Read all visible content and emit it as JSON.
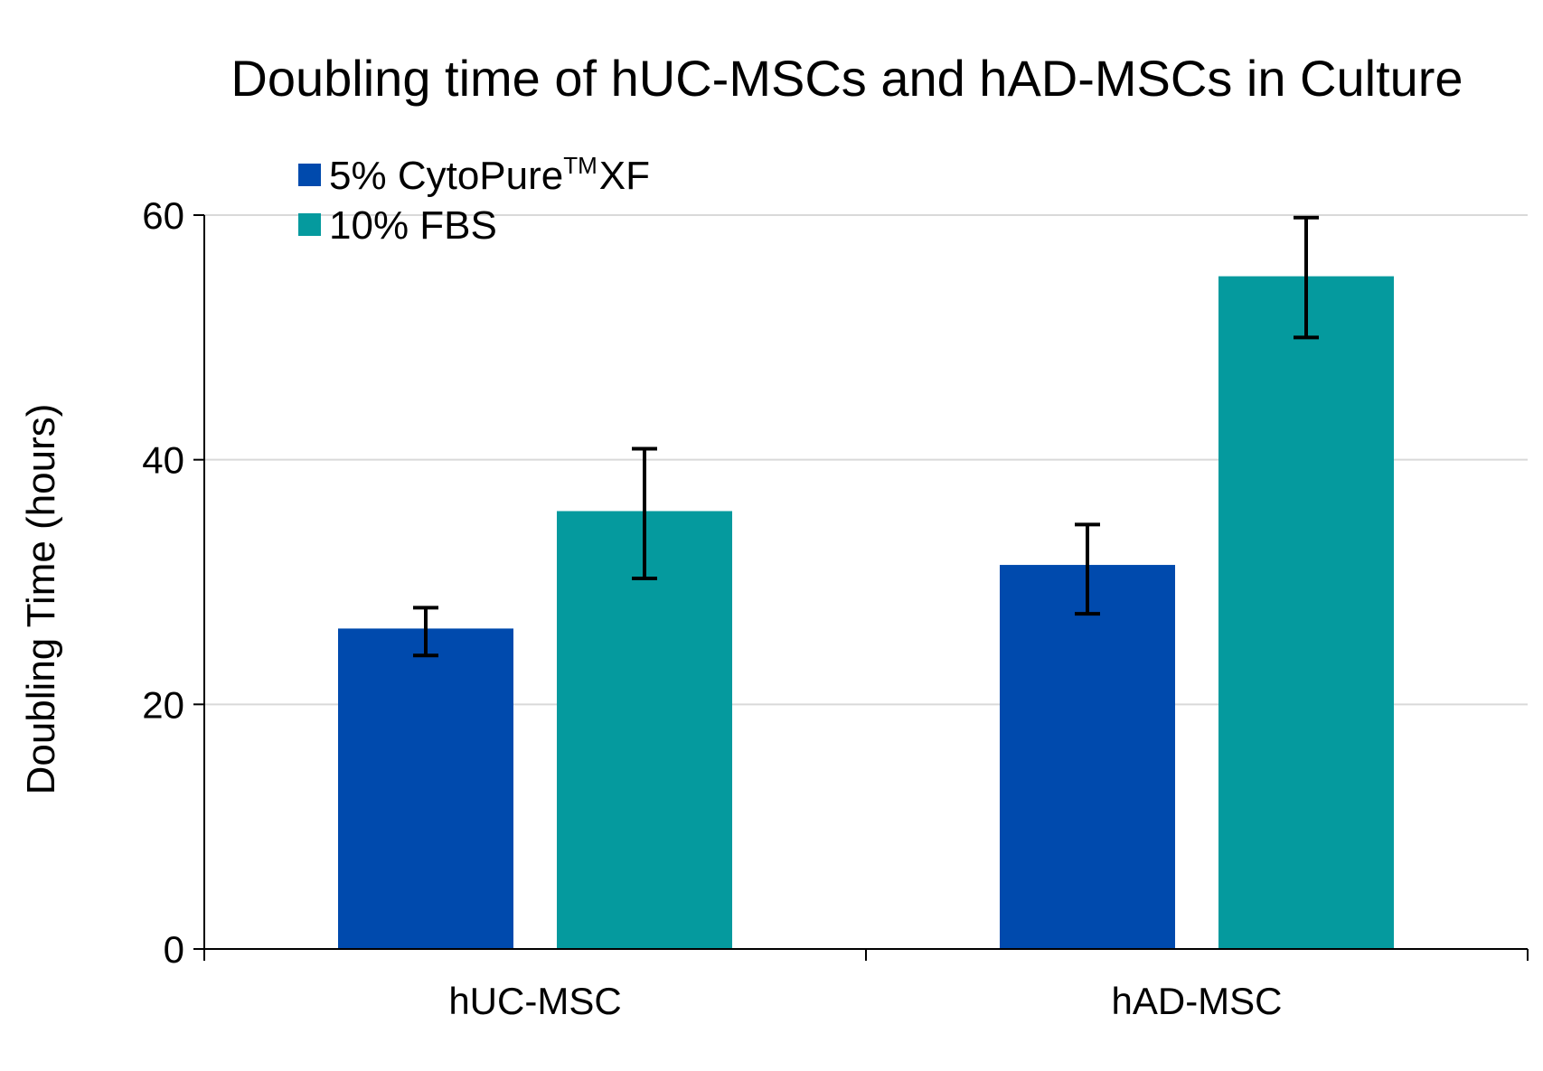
{
  "chart_data": {
    "type": "bar",
    "title": "Doubling time of hUC-MSCs and hAD-MSCs in Culture",
    "xlabel": "",
    "ylabel": "Doubling Time (hours)",
    "ylim": [
      0,
      60
    ],
    "yticks": [
      "0",
      "20",
      "40",
      "60"
    ],
    "grid": true,
    "legend_position": "top-left",
    "categories": [
      "hUC-MSC",
      "hAD-MSC"
    ],
    "series": [
      {
        "name": "5% CytoPure",
        "name_superscript": "TM",
        "name_suffix": "XF",
        "color": "#004aad",
        "values": [
          26.2,
          31.4
        ],
        "error_low": [
          24.0,
          27.4
        ],
        "error_high": [
          27.9,
          34.7
        ]
      },
      {
        "name": "10% FBS",
        "color": "#059a9e",
        "values": [
          35.8,
          55.0
        ],
        "error_low": [
          30.3,
          50.0
        ],
        "error_high": [
          40.9,
          59.8
        ]
      }
    ]
  }
}
